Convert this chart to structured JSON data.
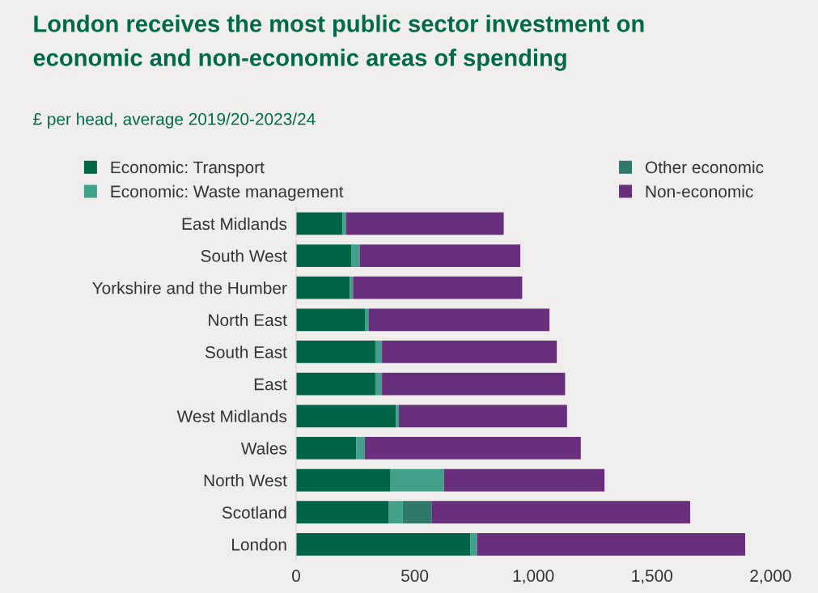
{
  "chart_data": {
    "type": "bar",
    "orientation": "horizontal",
    "stacked": true,
    "title": "London receives the most public sector investment on\neconomic and non-economic areas of spending",
    "subtitle": "£ per head, average 2019/20-2023/24",
    "categories": [
      "East Midlands",
      "South West",
      "Yorkshire and the Humber",
      "North East",
      "South East",
      "East",
      "West Midlands",
      "Wales",
      "North West",
      "Scotland",
      "London"
    ],
    "series": [
      {
        "name": "Economic: Transport",
        "color": "#006548",
        "values": [
          196,
          232,
          226,
          290,
          334,
          334,
          421,
          253,
          398,
          391,
          735
        ]
      },
      {
        "name": "Economic: Waste management",
        "color": "#43a08a",
        "values": [
          15,
          36,
          14,
          15,
          28,
          28,
          12,
          36,
          225,
          58,
          28
        ]
      },
      {
        "name": "Other economic",
        "color": "#2f786a",
        "values": [
          0,
          0,
          0,
          0,
          0,
          0,
          0,
          0,
          0,
          122,
          0
        ]
      },
      {
        "name": "Non-economic",
        "color": "#682f7c",
        "values": [
          664,
          677,
          713,
          763,
          737,
          772,
          709,
          911,
          677,
          1090,
          1130
        ]
      }
    ],
    "xlim": [
      0,
      2000
    ],
    "xticks": [
      0,
      {
        "value": 500,
        "label": "500"
      },
      {
        "value": 1000,
        "label": "1,000"
      },
      {
        "value": 1500,
        "label": "1,500"
      },
      {
        "value": 2000,
        "label": "2,000"
      }
    ],
    "legend": "top",
    "grid": false
  }
}
